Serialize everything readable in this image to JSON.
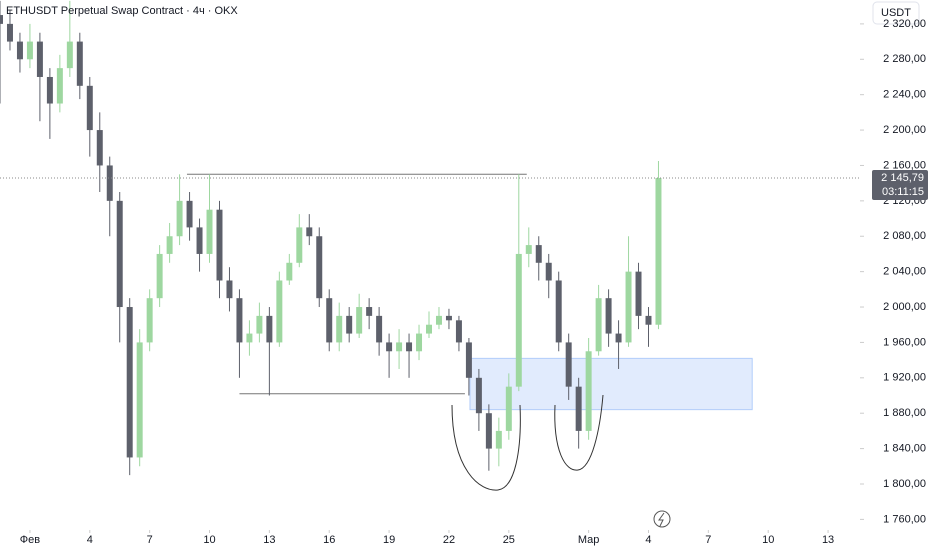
{
  "chart_data": {
    "type": "candlestick",
    "title": "ETHUSDT Perpetual Swap Contract · 4ч · OKX",
    "currency": "USDT",
    "up_color": "#9ed7a0",
    "down_color": "#5d606b",
    "x": [
      -1.5,
      -1,
      -0.5,
      0,
      0.5,
      1,
      1.5,
      2,
      2.5,
      3,
      3.5,
      4,
      4.5,
      5,
      5.5,
      6,
      6.5,
      7,
      7.5,
      8,
      8.5,
      9,
      9.5,
      10,
      10.5,
      11,
      11.5,
      12,
      12.5,
      13,
      13.5,
      14,
      14.5,
      15,
      15.5,
      16,
      16.5,
      17,
      17.5,
      18,
      18.5,
      19,
      19.5,
      20,
      20.5,
      21,
      21.5,
      22,
      22.5,
      23,
      23.5,
      24,
      24.5,
      25,
      25.5,
      26,
      26.5,
      27,
      27.5,
      28,
      28.5,
      29,
      29.5,
      30,
      30.5,
      31,
      31.5
    ],
    "open": [
      2330,
      2320,
      2300,
      2280,
      2300,
      2260,
      2230,
      2270,
      2300,
      2250,
      2200,
      2160,
      2120,
      2000,
      1830,
      1960,
      2010,
      2060,
      2080,
      2120,
      2090,
      2060,
      2110,
      2030,
      2010,
      1960,
      1970,
      1990,
      1960,
      2030,
      2050,
      2090,
      2080,
      2010,
      1960,
      1990,
      1970,
      2000,
      1990,
      1960,
      1950,
      1960,
      1950,
      1970,
      1980,
      1990,
      1985,
      1960,
      1920,
      1880,
      1840,
      1860,
      1910,
      2060,
      2070,
      2050,
      2030,
      1960,
      1910,
      1860,
      1950,
      2010,
      1970,
      1960,
      2040,
      1990,
      1980
    ],
    "high": [
      2346,
      2335,
      2310,
      2320,
      2310,
      2270,
      2285,
      2346,
      2310,
      2260,
      2220,
      2170,
      2130,
      2010,
      1975,
      2020,
      2070,
      2095,
      2150,
      2130,
      2100,
      2150,
      2120,
      2045,
      2020,
      1985,
      2005,
      2000,
      2040,
      2060,
      2105,
      2105,
      2090,
      2020,
      2005,
      2000,
      2015,
      2010,
      2000,
      1970,
      1975,
      1970,
      1980,
      1995,
      2000,
      1998,
      1990,
      1965,
      1930,
      1890,
      1875,
      1925,
      2150,
      2090,
      2080,
      2060,
      2040,
      1970,
      1920,
      1965,
      2025,
      2020,
      1985,
      2080,
      2050,
      2000,
      2165
    ],
    "low": [
      2230,
      2290,
      2265,
      2270,
      2210,
      2190,
      2220,
      2260,
      2235,
      2170,
      2130,
      2080,
      1960,
      1810,
      1820,
      1950,
      2000,
      2050,
      2070,
      2075,
      2040,
      2050,
      2010,
      1995,
      1920,
      1945,
      1960,
      1900,
      1955,
      2025,
      2045,
      2070,
      2000,
      1950,
      1950,
      1960,
      1965,
      1975,
      1945,
      1920,
      1930,
      1920,
      1940,
      1965,
      1975,
      1975,
      1950,
      1900,
      1860,
      1815,
      1820,
      1850,
      1905,
      2045,
      2030,
      2010,
      1950,
      1895,
      1840,
      1850,
      1945,
      1955,
      1930,
      1955,
      1975,
      1955,
      1975
    ],
    "close": [
      2320,
      2300,
      2280,
      2300,
      2260,
      2230,
      2270,
      2300,
      2250,
      2200,
      2160,
      2120,
      2000,
      1830,
      1960,
      2010,
      2060,
      2080,
      2120,
      2090,
      2060,
      2110,
      2030,
      2010,
      1960,
      1970,
      1990,
      1960,
      2030,
      2050,
      2090,
      2080,
      2010,
      1960,
      1990,
      1970,
      2000,
      1990,
      1960,
      1950,
      1960,
      1950,
      1970,
      1980,
      1990,
      1985,
      1960,
      1920,
      1880,
      1840,
      1860,
      1910,
      2060,
      2070,
      2050,
      2030,
      1960,
      1910,
      1860,
      1950,
      2010,
      1970,
      1960,
      2040,
      1990,
      1980,
      2145.79
    ],
    "xlim": [
      -1.5,
      41.6
    ],
    "ylim": [
      1748,
      2347
    ],
    "xticks": [
      {
        "value": 0,
        "label": "Фев"
      },
      {
        "value": 3,
        "label": "4"
      },
      {
        "value": 6,
        "label": "7"
      },
      {
        "value": 9,
        "label": "10"
      },
      {
        "value": 12,
        "label": "13"
      },
      {
        "value": 15,
        "label": "16"
      },
      {
        "value": 18,
        "label": "19"
      },
      {
        "value": 21,
        "label": "22"
      },
      {
        "value": 24,
        "label": "25"
      },
      {
        "value": 28,
        "label": "Мар"
      },
      {
        "value": 31,
        "label": "4"
      },
      {
        "value": 34,
        "label": "7"
      },
      {
        "value": 37,
        "label": "10"
      },
      {
        "value": 40,
        "label": "13"
      }
    ],
    "yticks": [
      {
        "value": 1760,
        "label": "1 760,00"
      },
      {
        "value": 1800,
        "label": "1 800,00"
      },
      {
        "value": 1840,
        "label": "1 840,00"
      },
      {
        "value": 1880,
        "label": "1 880,00"
      },
      {
        "value": 1920,
        "label": "1 920,00"
      },
      {
        "value": 1960,
        "label": "1 960,00"
      },
      {
        "value": 2000,
        "label": "2 000,00"
      },
      {
        "value": 2040,
        "label": "2 040,00"
      },
      {
        "value": 2080,
        "label": "2 080,00"
      },
      {
        "value": 2120,
        "label": "2 120,00"
      },
      {
        "value": 2160,
        "label": "2 160,00"
      },
      {
        "value": 2200,
        "label": "2 200,00"
      },
      {
        "value": 2240,
        "label": "2 240,00"
      },
      {
        "value": 2280,
        "label": "2 280,00"
      },
      {
        "value": 2320,
        "label": "2 320,00"
      }
    ],
    "last_price": {
      "value": 2145.79,
      "label": "2 145,79"
    },
    "countdown": "03:11:15",
    "levels": [
      {
        "value": 2150,
        "x": [
          7.87,
          24.9
        ]
      },
      {
        "value": 1902,
        "x": [
          10.5,
          21.8
        ]
      }
    ],
    "zone": {
      "ylim": [
        1884,
        1942
      ],
      "xlim": [
        22.05,
        36.2
      ]
    }
  }
}
